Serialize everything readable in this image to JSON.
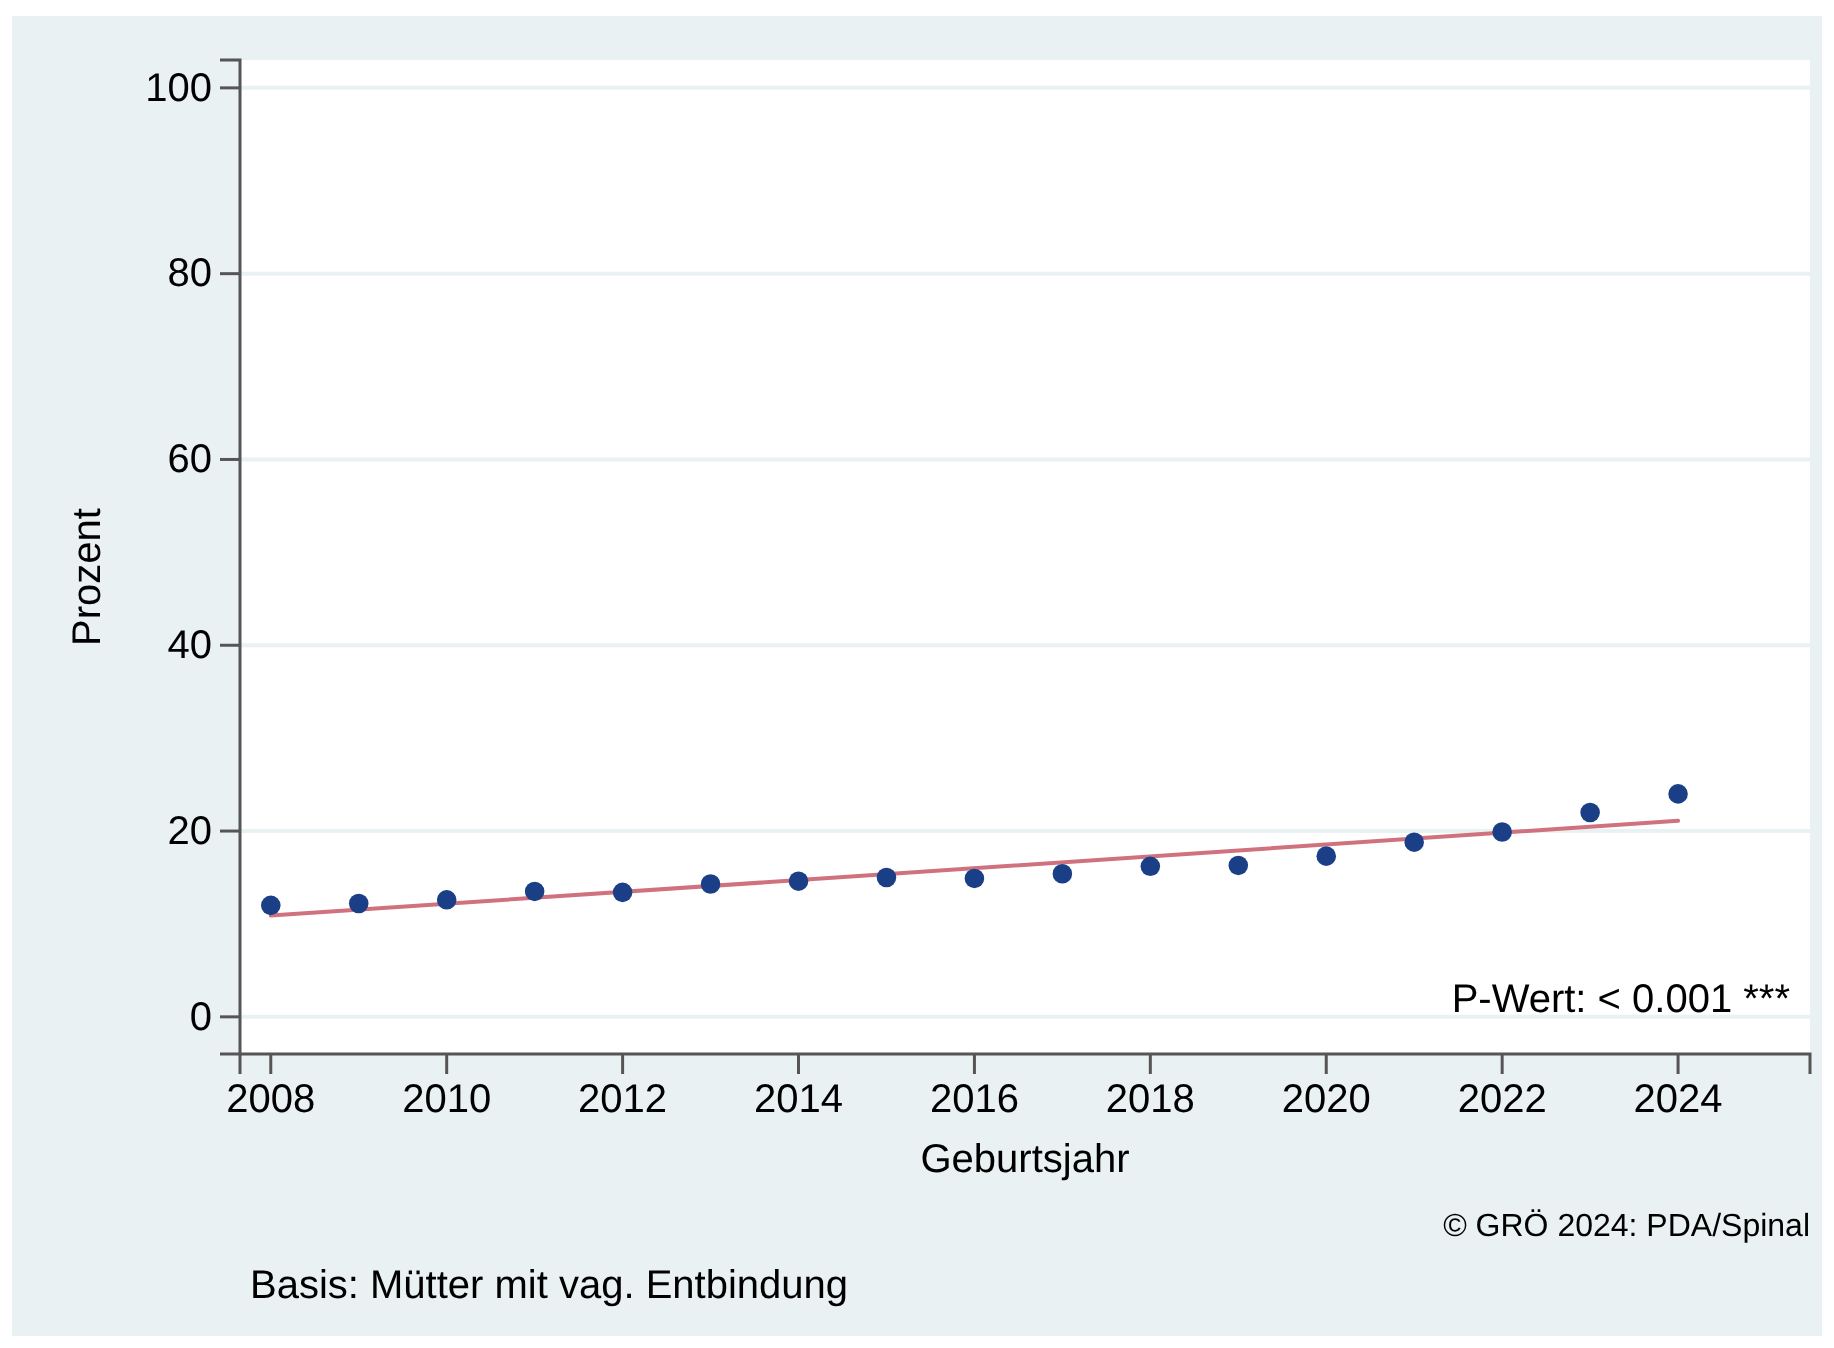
{
  "chart_data": {
    "type": "scatter",
    "xlabel": "Geburtsjahr",
    "ylabel": "Prozent",
    "x": [
      2008,
      2009,
      2010,
      2011,
      2012,
      2013,
      2014,
      2015,
      2016,
      2017,
      2018,
      2019,
      2020,
      2021,
      2022,
      2023,
      2024
    ],
    "series": [
      {
        "color": "#1a3f87",
        "marker": "circle",
        "values": [
          12.0,
          12.2,
          12.6,
          13.5,
          13.4,
          14.3,
          14.6,
          15.0,
          14.9,
          15.4,
          16.2,
          16.3,
          17.3,
          18.8,
          19.9,
          22.0,
          24.0
        ]
      },
      {
        "type": "line",
        "color": "#d0727e",
        "line_style": "solid",
        "x": [
          2008,
          2024
        ],
        "values": [
          10.9,
          21.1
        ]
      }
    ],
    "xlim": [
      2007.65,
      2025.5
    ],
    "ylim": [
      -4,
      103
    ],
    "xticks": [
      2008,
      2010,
      2012,
      2014,
      2016,
      2018,
      2020,
      2022,
      2024
    ],
    "yticks": [
      0,
      20,
      40,
      60,
      80,
      100
    ],
    "grid": "y",
    "annotations": [
      "P-Wert: < 0.001 ***",
      "© GRÖ 2024: PDA/Spinal",
      "Basis: Mütter mit vag. Entbindung"
    ]
  }
}
